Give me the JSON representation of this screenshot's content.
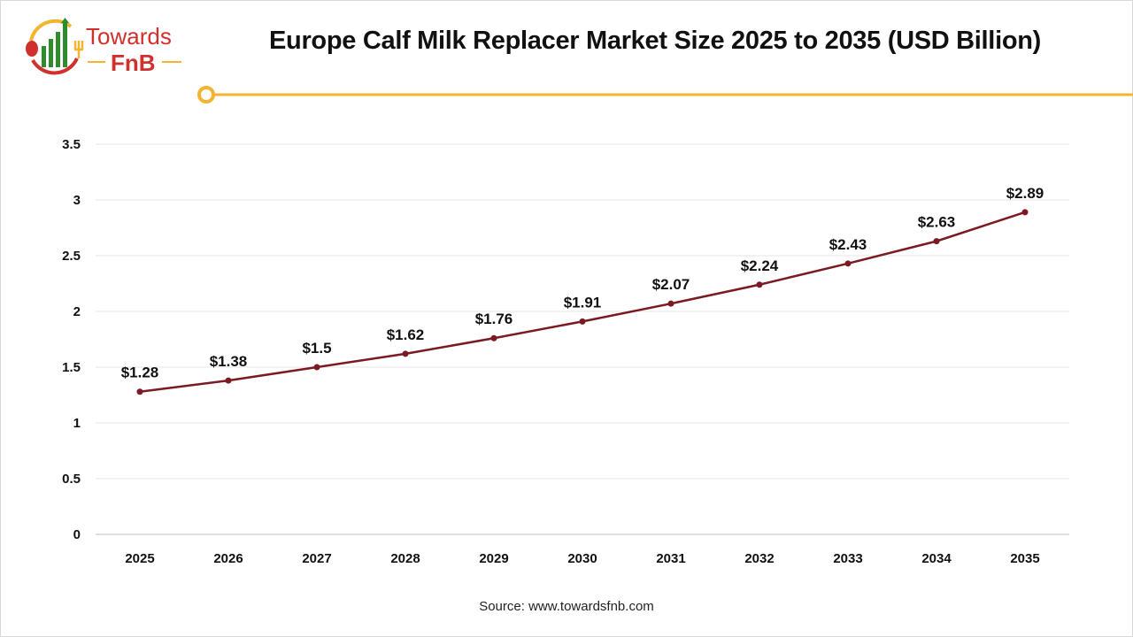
{
  "logo": {
    "line1": "Towards",
    "line2": "FnB"
  },
  "colors": {
    "line": "#7b1a22",
    "accent": "#f2b431",
    "logo_red": "#d0312d",
    "logo_green": "#2e8b2e",
    "grid": "#e6e6e6"
  },
  "source": "Source: www.towardsfnb.com",
  "chart_data": {
    "type": "line",
    "title": "Europe Calf Milk Replacer Market Size 2025 to 2035 (USD Billion)",
    "xlabel": "",
    "ylabel": "",
    "ylim": [
      0,
      3.5
    ],
    "yticks": [
      "0",
      "0.5",
      "1",
      "1.5",
      "2",
      "2.5",
      "3",
      "3.5"
    ],
    "grid": true,
    "categories": [
      "2025",
      "2026",
      "2027",
      "2028",
      "2029",
      "2030",
      "2031",
      "2032",
      "2033",
      "2034",
      "2035"
    ],
    "values": [
      1.28,
      1.38,
      1.5,
      1.62,
      1.76,
      1.91,
      2.07,
      2.24,
      2.43,
      2.63,
      2.89
    ],
    "data_labels": [
      "$1.28",
      "$1.38",
      "$1.5",
      "$1.62",
      "$1.76",
      "$1.91",
      "$2.07",
      "$2.24",
      "$2.43",
      "$2.63",
      "$2.89"
    ]
  }
}
